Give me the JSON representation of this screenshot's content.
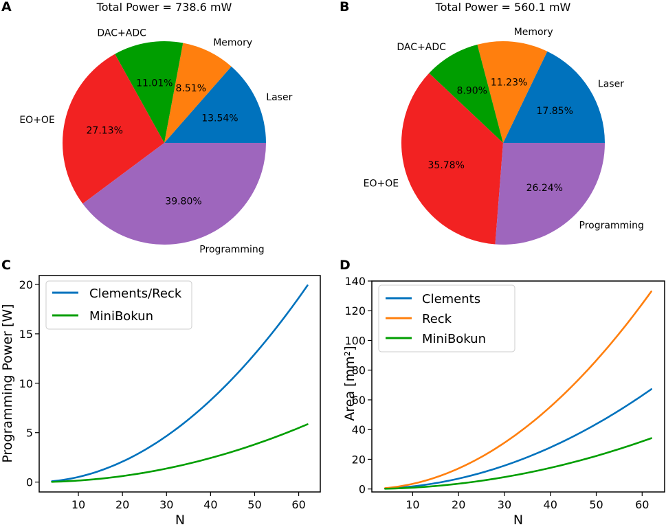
{
  "panels": {
    "A": {
      "label": "A"
    },
    "B": {
      "label": "B"
    },
    "C": {
      "label": "C"
    },
    "D": {
      "label": "D"
    }
  },
  "colors": {
    "blue": "#0072bd",
    "orange": "#ff7f0e",
    "green": "#009e00",
    "red": "#f22222",
    "purple": "#9e66bd"
  },
  "chart_data": [
    {
      "id": "A",
      "type": "pie",
      "title": "Total Power = 738.6 mW",
      "start_angle_deg": 0,
      "direction": "counterclockwise",
      "slices": [
        {
          "label": "Laser",
          "value": 13.54,
          "pct": "13.54%",
          "color": "#0072bd"
        },
        {
          "label": "Memory",
          "value": 8.51,
          "pct": "8.51%",
          "color": "#ff7f0e"
        },
        {
          "label": "DAC+ADC",
          "value": 11.01,
          "pct": "11.01%",
          "color": "#009e00"
        },
        {
          "label": "EO+OE",
          "value": 27.13,
          "pct": "27.13%",
          "color": "#f22222"
        },
        {
          "label": "Programming",
          "value": 39.8,
          "pct": "39.80%",
          "color": "#9e66bd"
        }
      ]
    },
    {
      "id": "B",
      "type": "pie",
      "title": "Total Power = 560.1 mW",
      "start_angle_deg": 0,
      "direction": "counterclockwise",
      "slices": [
        {
          "label": "Laser",
          "value": 17.85,
          "pct": "17.85%",
          "color": "#0072bd"
        },
        {
          "label": "Memory",
          "value": 11.23,
          "pct": "11.23%",
          "color": "#ff7f0e"
        },
        {
          "label": "DAC+ADC",
          "value": 8.9,
          "pct": "8.90%",
          "color": "#009e00"
        },
        {
          "label": "EO+OE",
          "value": 35.78,
          "pct": "35.78%",
          "color": "#f22222"
        },
        {
          "label": "Programming",
          "value": 26.24,
          "pct": "26.24%",
          "color": "#9e66bd"
        }
      ]
    },
    {
      "id": "C",
      "type": "line",
      "xlabel": "N",
      "ylabel": "Programming Power [W]",
      "xlim": [
        1.1,
        64.9
      ],
      "ylim": [
        -1.0,
        20.9
      ],
      "xticks": [
        10,
        20,
        30,
        40,
        50,
        60
      ],
      "yticks": [
        0,
        5,
        10,
        15,
        20
      ],
      "legend_position": "upper-left",
      "series": [
        {
          "name": "Clements/Reck",
          "color": "#0072bd",
          "x": [
            4,
            62
          ],
          "y_end": 19.9,
          "curve": "quadratic"
        },
        {
          "name": "MiniBokun",
          "color": "#009e00",
          "x": [
            4,
            62
          ],
          "y_end": 5.85,
          "curve": "quadratic"
        }
      ]
    },
    {
      "id": "D",
      "type": "line",
      "xlabel": "N",
      "ylabel": "Area [mm²]",
      "xlim": [
        1.1,
        64.9
      ],
      "ylim": [
        -2.0,
        140.0
      ],
      "xticks": [
        10,
        20,
        30,
        40,
        50,
        60
      ],
      "yticks": [
        0,
        20,
        40,
        60,
        80,
        100,
        120,
        140
      ],
      "legend_position": "upper-left",
      "series": [
        {
          "name": "Clements",
          "color": "#0072bd",
          "x": [
            4,
            62
          ],
          "y_end": 67.2,
          "curve": "quadratic"
        },
        {
          "name": "Reck",
          "color": "#ff7f0e",
          "x": [
            4,
            62
          ],
          "y_end": 133.0,
          "curve": "quadratic"
        },
        {
          "name": "MiniBokun",
          "color": "#009e00",
          "x": [
            4,
            62
          ],
          "y_end": 34.2,
          "curve": "quadratic"
        }
      ]
    }
  ]
}
